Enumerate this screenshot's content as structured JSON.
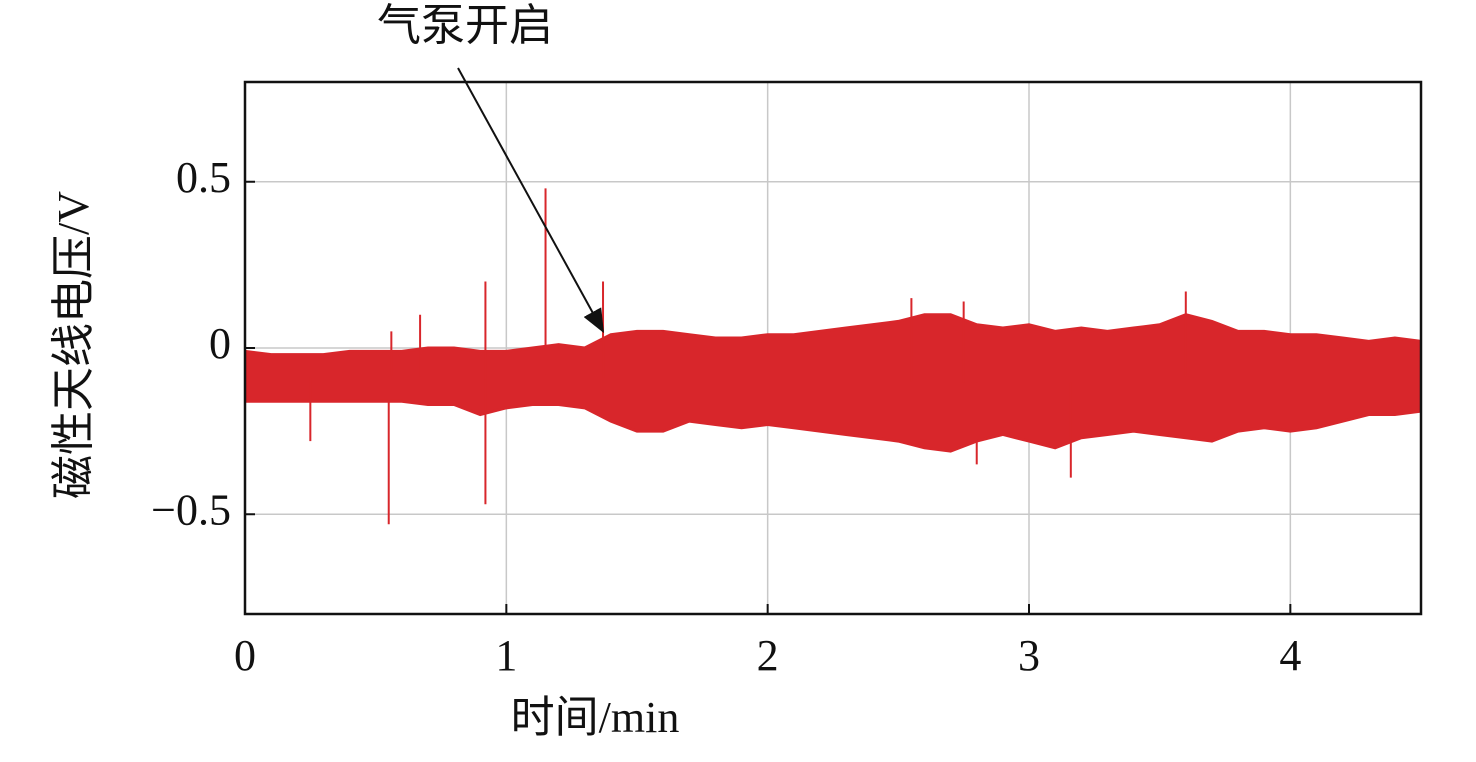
{
  "chart_data": {
    "type": "envelope",
    "x_label": "时间/min",
    "y_label": "磁性天线电压/V",
    "xlim": [
      0,
      4.5
    ],
    "ylim": [
      -0.8,
      0.8
    ],
    "xticks": [
      0,
      1,
      2,
      3,
      4
    ],
    "yticks": [
      0.5,
      0,
      {
        "value": -0.5,
        "label": "−0.5"
      }
    ],
    "grid": true,
    "annotation": {
      "text": "气泵开启",
      "x": 1.37,
      "y": 0.05
    },
    "x": [
      0,
      0.1,
      0.2,
      0.3,
      0.4,
      0.5,
      0.6,
      0.7,
      0.8,
      0.9,
      1.0,
      1.1,
      1.2,
      1.3,
      1.4,
      1.5,
      1.6,
      1.7,
      1.8,
      1.9,
      2.0,
      2.1,
      2.2,
      2.3,
      2.4,
      2.5,
      2.6,
      2.7,
      2.8,
      2.9,
      3.0,
      3.1,
      3.2,
      3.3,
      3.4,
      3.5,
      3.6,
      3.7,
      3.8,
      3.9,
      4.0,
      4.1,
      4.2,
      4.3,
      4.4,
      4.5
    ],
    "series": [
      {
        "color": "#d8262b",
        "upper": [
          -0.01,
          -0.02,
          -0.02,
          -0.02,
          -0.01,
          -0.01,
          -0.01,
          0,
          0,
          -0.01,
          -0.01,
          0,
          0.01,
          0,
          0.04,
          0.05,
          0.05,
          0.04,
          0.03,
          0.03,
          0.04,
          0.04,
          0.05,
          0.06,
          0.07,
          0.08,
          0.1,
          0.1,
          0.07,
          0.06,
          0.07,
          0.05,
          0.06,
          0.05,
          0.06,
          0.07,
          0.1,
          0.08,
          0.05,
          0.05,
          0.04,
          0.04,
          0.03,
          0.02,
          0.03,
          0.02
        ],
        "lower": [
          -0.16,
          -0.16,
          -0.16,
          -0.16,
          -0.16,
          -0.16,
          -0.16,
          -0.17,
          -0.17,
          -0.2,
          -0.18,
          -0.17,
          -0.17,
          -0.18,
          -0.22,
          -0.25,
          -0.25,
          -0.22,
          -0.23,
          -0.24,
          -0.23,
          -0.24,
          -0.25,
          -0.26,
          -0.27,
          -0.28,
          -0.3,
          -0.31,
          -0.28,
          -0.26,
          -0.28,
          -0.3,
          -0.27,
          -0.26,
          -0.25,
          -0.26,
          -0.27,
          -0.28,
          -0.25,
          -0.24,
          -0.25,
          -0.24,
          -0.22,
          -0.2,
          -0.2,
          -0.19
        ]
      }
    ],
    "spikes": [
      {
        "x": 0.25,
        "y": -0.28
      },
      {
        "x": 0.55,
        "y": -0.53
      },
      {
        "x": 0.56,
        "y": 0.05
      },
      {
        "x": 0.67,
        "y": 0.1
      },
      {
        "x": 0.92,
        "y": 0.2
      },
      {
        "x": 0.92,
        "y": -0.47
      },
      {
        "x": 1.15,
        "y": 0.48
      },
      {
        "x": 1.37,
        "y": 0.2
      },
      {
        "x": 2.55,
        "y": 0.15
      },
      {
        "x": 2.75,
        "y": 0.14
      },
      {
        "x": 2.8,
        "y": -0.35
      },
      {
        "x": 3.16,
        "y": -0.39
      },
      {
        "x": 3.6,
        "y": 0.17
      }
    ]
  }
}
